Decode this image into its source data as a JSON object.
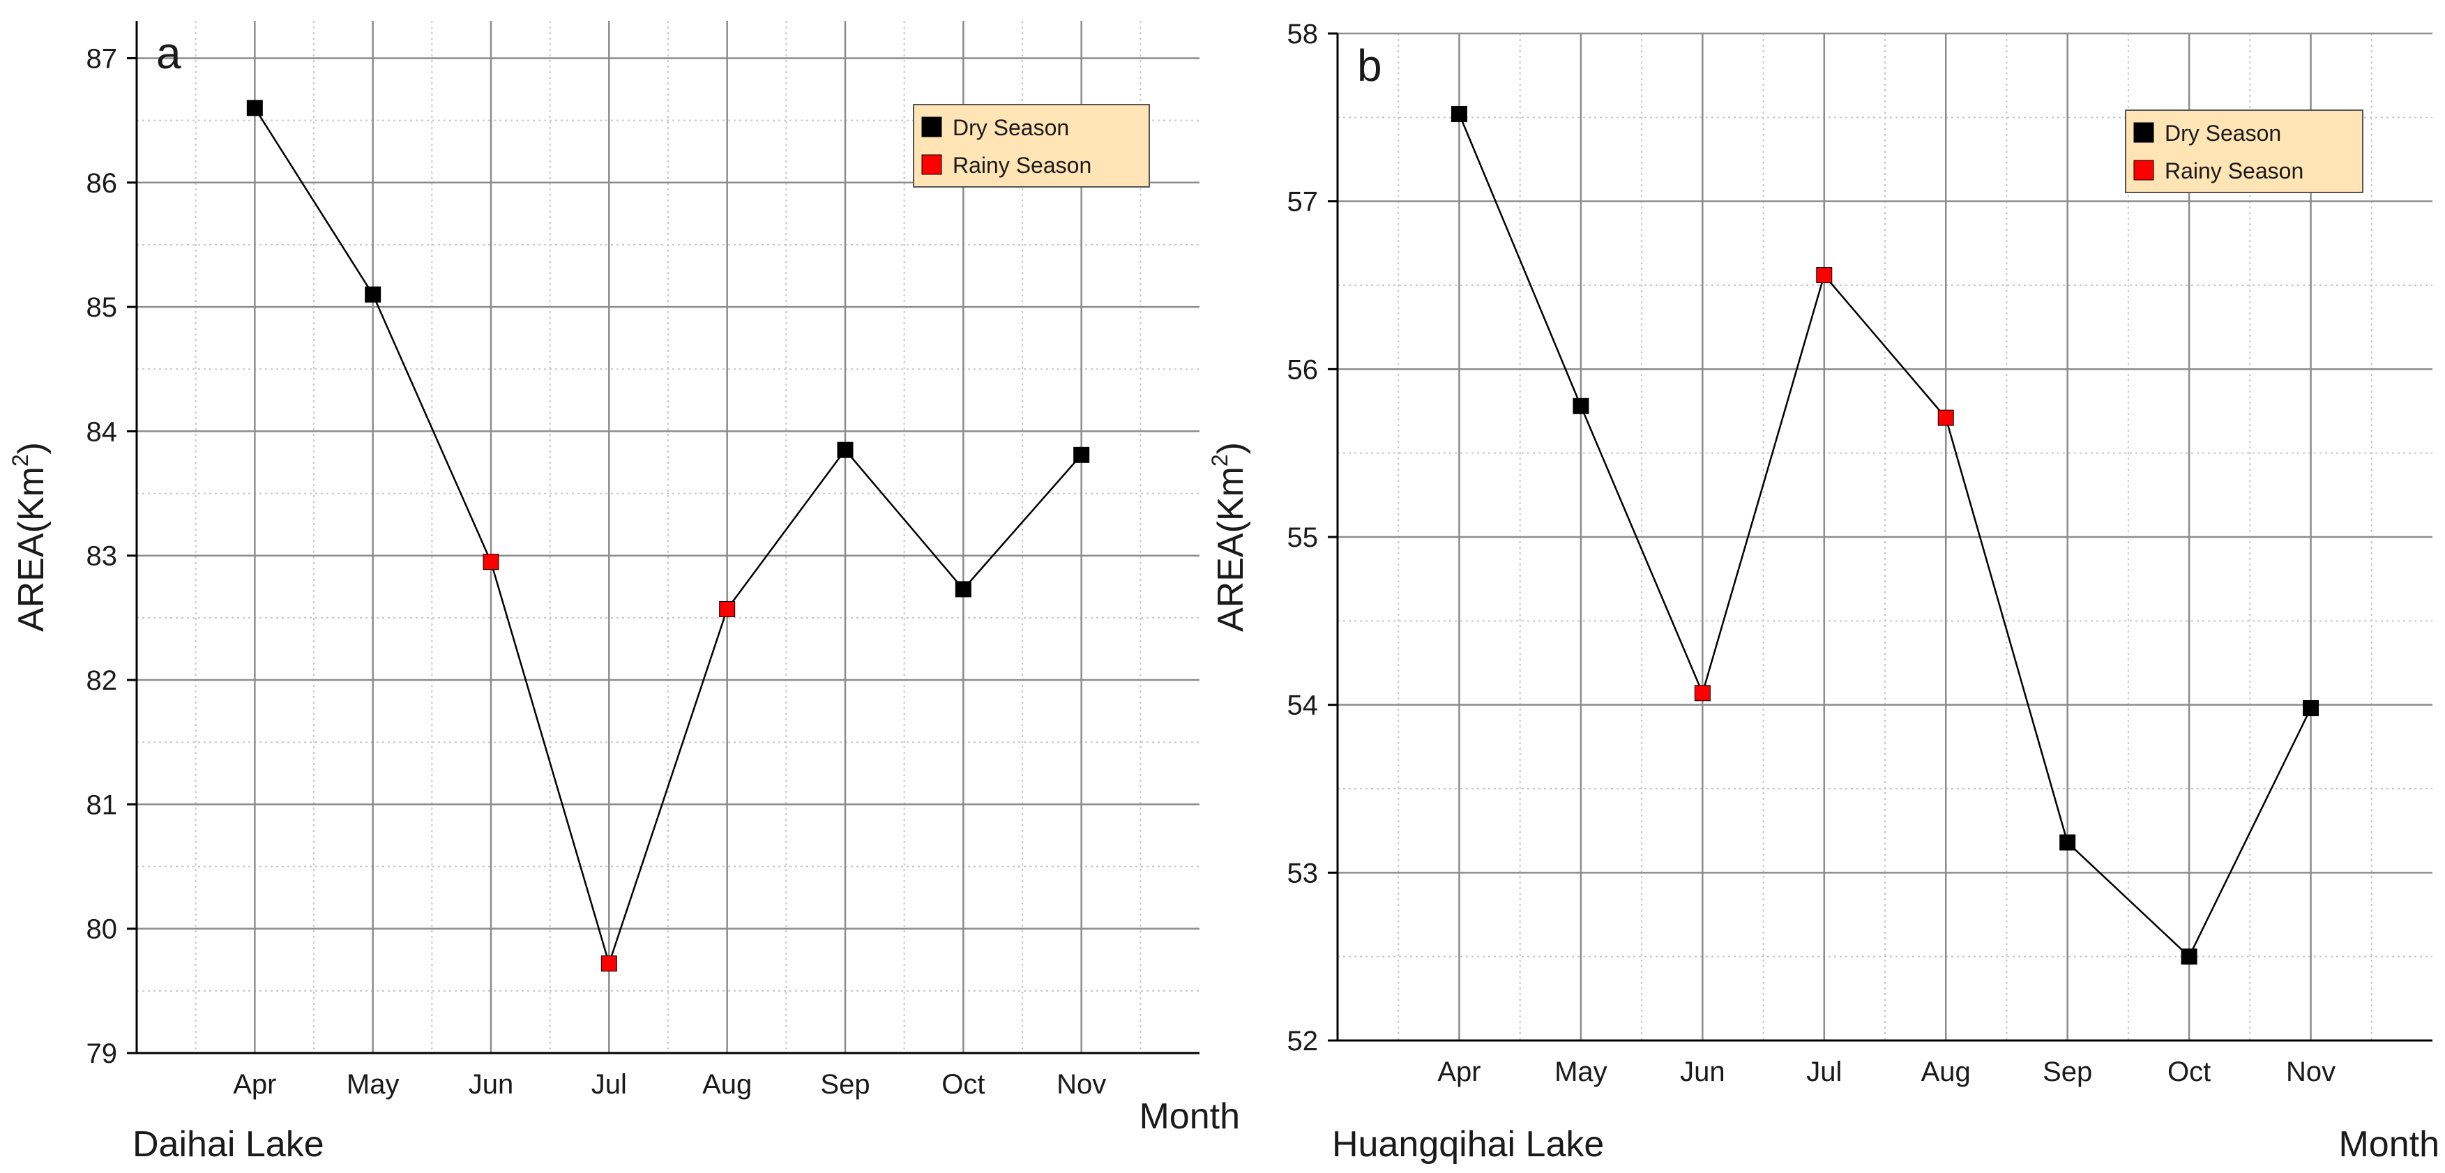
{
  "figure": {
    "panels": [
      "a",
      "b"
    ]
  },
  "chart_data": [
    {
      "type": "line",
      "panel_label": "a",
      "lake_label": "Daihai Lake",
      "xlabel": "Month",
      "ylabel_main": "AREA(Km",
      "ylabel_sup": "2",
      "ylabel_close": ")",
      "categories": [
        "Apr",
        "May",
        "Jun",
        "Jul",
        "Aug",
        "Sep",
        "Oct",
        "Nov"
      ],
      "values": [
        86.6,
        85.1,
        82.95,
        79.72,
        82.57,
        83.85,
        82.73,
        83.81
      ],
      "season": [
        "dry",
        "dry",
        "rainy",
        "rainy",
        "rainy",
        "dry",
        "dry",
        "dry"
      ],
      "ylim": [
        79,
        87.3
      ],
      "yticks": [
        79,
        80,
        81,
        82,
        83,
        84,
        85,
        86,
        87
      ],
      "grid": true,
      "legend": {
        "position": "top-right",
        "items": [
          {
            "key": "dry",
            "label": "Dry Season",
            "color": "#000000"
          },
          {
            "key": "rainy",
            "label": "Rainy Season",
            "color": "#ff0000"
          }
        ]
      }
    },
    {
      "type": "line",
      "panel_label": "b",
      "lake_label": "Huangqihai Lake",
      "xlabel": "Month",
      "ylabel_main": "AREA(Km",
      "ylabel_sup": "2",
      "ylabel_close": ")",
      "categories": [
        "Apr",
        "May",
        "Jun",
        "Jul",
        "Aug",
        "Sep",
        "Oct",
        "Nov"
      ],
      "values": [
        57.52,
        55.78,
        54.07,
        56.56,
        55.71,
        53.18,
        52.5,
        53.98
      ],
      "season": [
        "dry",
        "dry",
        "rainy",
        "rainy",
        "rainy",
        "dry",
        "dry",
        "dry"
      ],
      "ylim": [
        52,
        58
      ],
      "yticks": [
        52,
        53,
        54,
        55,
        56,
        57,
        58
      ],
      "grid": true,
      "legend": {
        "position": "top-right",
        "items": [
          {
            "key": "dry",
            "label": "Dry Season",
            "color": "#000000"
          },
          {
            "key": "rainy",
            "label": "Rainy Season",
            "color": "#ff0000"
          }
        ]
      }
    }
  ],
  "colors": {
    "dry": "#000000",
    "rainy": "#ff0000",
    "legend_bg": "#ffe4b5",
    "major_grid": "#8c8c8c",
    "minor_grid": "#c8c8c8",
    "line": "#000000"
  }
}
